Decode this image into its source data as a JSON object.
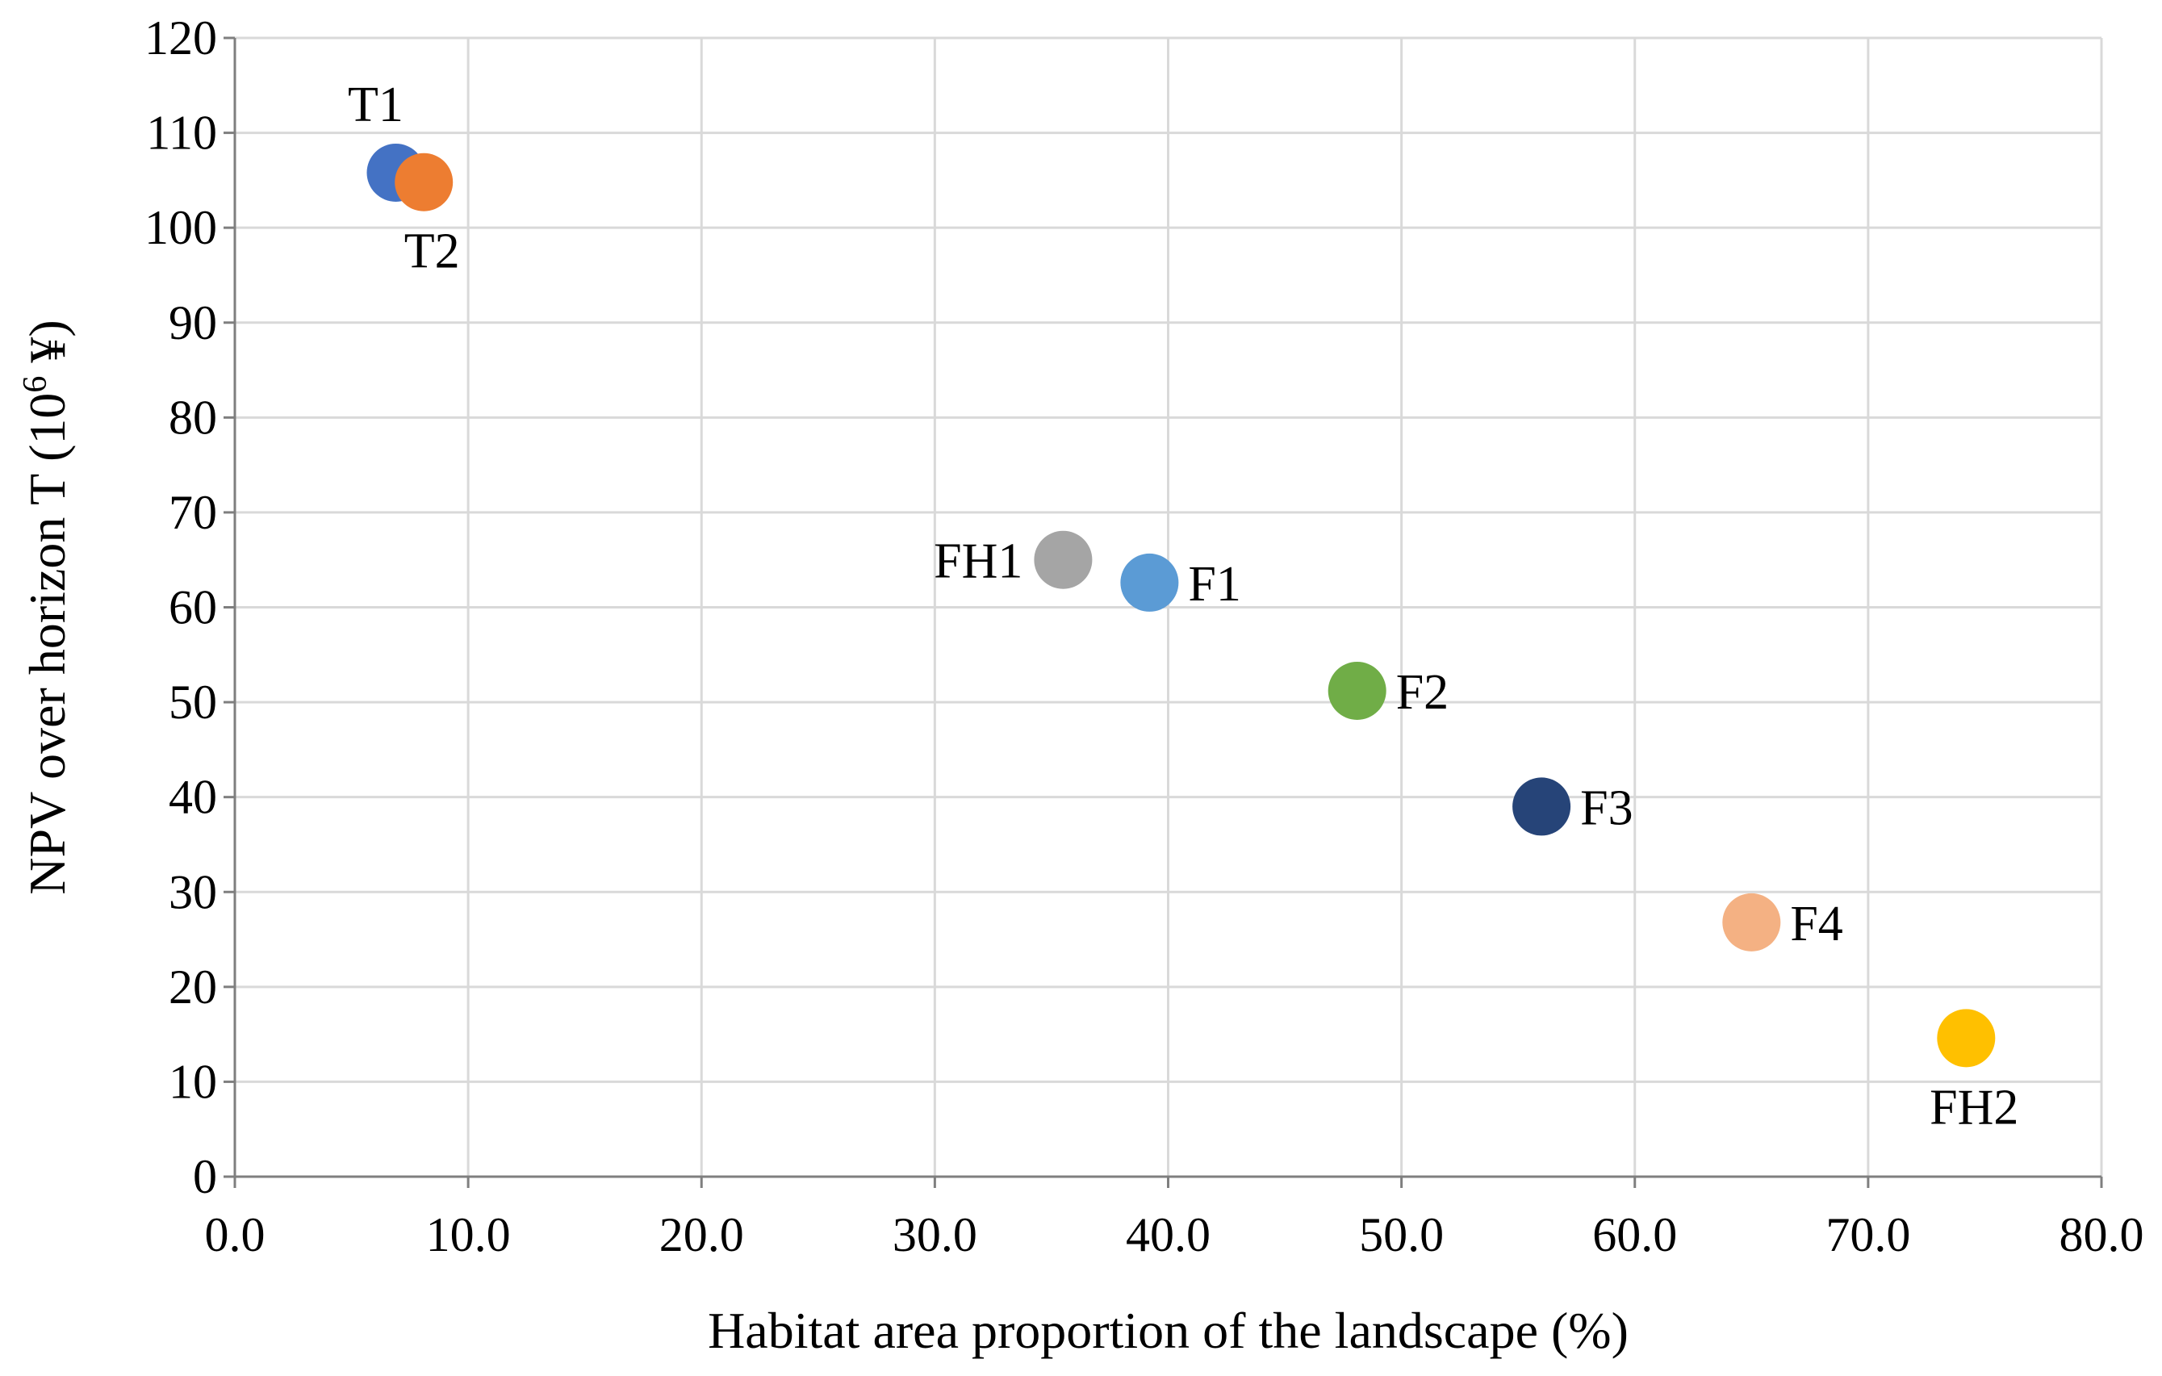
{
  "chart_data": {
    "type": "scatter",
    "title": "",
    "xlabel": "Habitat area proportion of the landscape (%)",
    "ylabel": "NPV over horizon T (10",
    "ylabel_superscript": "6",
    "ylabel_suffix": " ¥)",
    "xlim": [
      0,
      80
    ],
    "ylim": [
      0,
      120
    ],
    "x_ticks": [
      0,
      10,
      20,
      30,
      40,
      50,
      60,
      70,
      80
    ],
    "x_tick_labels": [
      "0.0",
      "10.0",
      "20.0",
      "30.0",
      "40.0",
      "50.0",
      "60.0",
      "70.0",
      "80.0"
    ],
    "y_ticks": [
      0,
      10,
      20,
      30,
      40,
      50,
      60,
      70,
      80,
      90,
      100,
      110,
      120
    ],
    "y_tick_labels": [
      "0",
      "10",
      "20",
      "30",
      "40",
      "50",
      "60",
      "70",
      "80",
      "90",
      "100",
      "110",
      "120"
    ],
    "grid": true,
    "legend": "none",
    "points": [
      {
        "label": "T1",
        "x": 6.9,
        "y": 105.8,
        "color": "#4472c4",
        "label_pos": "above-left"
      },
      {
        "label": "T2",
        "x": 8.1,
        "y": 104.8,
        "color": "#ed7d31",
        "label_pos": "below"
      },
      {
        "label": "FH1",
        "x": 35.5,
        "y": 65.0,
        "color": "#a5a5a5",
        "label_pos": "left"
      },
      {
        "label": "F1",
        "x": 39.2,
        "y": 62.6,
        "color": "#5b9bd5",
        "label_pos": "right"
      },
      {
        "label": "F2",
        "x": 48.1,
        "y": 51.2,
        "color": "#70ad47",
        "label_pos": "right"
      },
      {
        "label": "F3",
        "x": 56.0,
        "y": 39.0,
        "color": "#264478",
        "label_pos": "right"
      },
      {
        "label": "F4",
        "x": 65.0,
        "y": 26.8,
        "color": "#f4b183",
        "label_pos": "right"
      },
      {
        "label": "FH2",
        "x": 74.2,
        "y": 14.6,
        "color": "#ffc000",
        "label_pos": "below"
      }
    ]
  }
}
